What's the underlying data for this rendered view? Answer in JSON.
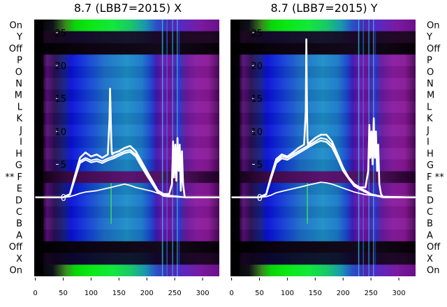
{
  "figure": {
    "row_labels": [
      "On",
      "Y",
      "Off",
      "P",
      "O",
      "N",
      "M",
      "L",
      "K",
      "J",
      "I",
      "H",
      "G",
      "F",
      "E",
      "D",
      "C",
      "B",
      "A",
      "Off",
      "X",
      "On"
    ],
    "marked_row": "F",
    "marked_row_marker": "**"
  },
  "chart_data": [
    {
      "type": "line",
      "title": "8.7 (LBB7=2015) X",
      "xlabel": "",
      "ylabel": "",
      "xlim": [
        -2,
        330
      ],
      "ylim": [
        -12,
        27
      ],
      "x_ticks": [
        0,
        50,
        100,
        150,
        200,
        250,
        300
      ],
      "y_ticks": [
        0,
        5,
        10,
        15,
        20,
        25
      ],
      "grid": false,
      "legend": "none",
      "background": "spectrogram heatmap: black edges, purple bands near x 5-15 and 225-300, blue/cyan interior, bright green top and bottom bands",
      "line_color": "#ffffff",
      "series": [
        {
          "x": [
            0,
            50,
            62,
            70,
            80,
            90,
            100,
            110,
            120,
            130,
            133,
            134,
            135,
            136,
            137,
            138,
            140,
            150,
            160,
            170,
            180,
            190,
            200,
            210,
            220,
            230,
            240,
            245,
            247,
            249,
            251,
            253,
            255,
            257,
            259,
            261,
            263,
            265,
            268,
            272,
            290,
            330
          ],
          "y": [
            0,
            0,
            0.5,
            3,
            6,
            6.8,
            6.2,
            6.5,
            6,
            6.5,
            12,
            16.5,
            13,
            9,
            7,
            6.5,
            6.7,
            7,
            7.5,
            7.8,
            7,
            5.5,
            4,
            2.5,
            1,
            0.5,
            0.5,
            2,
            8.5,
            3,
            8,
            2.5,
            9,
            4,
            8,
            1,
            7,
            2,
            0,
            0,
            0,
            0
          ]
        },
        {
          "x": [
            0,
            50,
            62,
            70,
            80,
            90,
            100,
            110,
            120,
            130,
            140,
            150,
            160,
            170,
            180,
            190,
            200,
            210,
            220,
            230,
            240,
            250,
            270,
            330
          ],
          "y": [
            0,
            0,
            0.4,
            2.8,
            5.5,
            6,
            5.6,
            5.8,
            5.5,
            5.9,
            6.2,
            6.6,
            7,
            7.2,
            6.5,
            5,
            3.6,
            2.2,
            0.8,
            0.3,
            0.2,
            0.1,
            0,
            0
          ]
        },
        {
          "x": [
            0,
            50,
            62,
            70,
            80,
            90,
            100,
            110,
            120,
            130,
            140,
            150,
            160,
            170,
            180,
            190,
            200,
            210,
            220,
            230,
            240,
            250,
            270,
            330
          ],
          "y": [
            0,
            0,
            0.4,
            2.5,
            5.2,
            5.7,
            5.3,
            5.5,
            5.2,
            5.6,
            5.9,
            6.3,
            6.7,
            6.9,
            6.2,
            4.7,
            3.3,
            2,
            0.7,
            0.2,
            0.1,
            0.1,
            0,
            0
          ]
        },
        {
          "x": [
            0,
            50,
            62,
            70,
            80,
            90,
            100,
            110,
            120,
            130,
            140,
            150,
            160,
            170,
            180,
            190,
            200,
            210,
            220,
            230,
            240,
            250,
            260,
            270,
            330
          ],
          "y": [
            0,
            0,
            0.1,
            0.3,
            0.6,
            0.8,
            0.9,
            1,
            1.2,
            1.4,
            1.6,
            1.8,
            2,
            1.8,
            1.5,
            1.3,
            1.1,
            0.9,
            0.6,
            0.4,
            0.3,
            0.2,
            0.1,
            0,
            0
          ]
        }
      ]
    },
    {
      "type": "line",
      "title": "8.7 (LBB7=2015) Y",
      "xlabel": "",
      "ylabel": "",
      "xlim": [
        -2,
        330
      ],
      "ylim": [
        -12,
        27
      ],
      "x_ticks": [
        0,
        50,
        100,
        150,
        200,
        250,
        300
      ],
      "y_ticks": [
        0,
        5,
        10,
        15,
        20,
        25
      ],
      "grid": false,
      "legend": "none",
      "background": "spectrogram heatmap: black edges, purple bands near x 5-15 and 225-300, blue/cyan interior, bright green top and bottom bands",
      "line_color": "#ffffff",
      "series": [
        {
          "x": [
            0,
            50,
            62,
            70,
            80,
            90,
            100,
            110,
            120,
            130,
            133,
            134,
            135,
            136,
            137,
            138,
            140,
            150,
            160,
            170,
            180,
            190,
            200,
            210,
            220,
            230,
            240,
            245,
            247,
            249,
            251,
            253,
            255,
            257,
            259,
            261,
            263,
            265,
            268,
            272,
            290,
            330
          ],
          "y": [
            0,
            0,
            0.5,
            3,
            5.8,
            6.5,
            6.2,
            6.8,
            7.5,
            8,
            13,
            24,
            15,
            9,
            8,
            7.8,
            8.3,
            9,
            9.5,
            9.5,
            8.5,
            6.5,
            4.5,
            3,
            2,
            1.5,
            1.5,
            4,
            11,
            6,
            10,
            5,
            12,
            6,
            10,
            4,
            8,
            2,
            0.5,
            0,
            0,
            0
          ]
        },
        {
          "x": [
            0,
            50,
            62,
            70,
            80,
            90,
            100,
            110,
            120,
            130,
            140,
            150,
            160,
            170,
            180,
            190,
            200,
            210,
            220,
            230,
            240,
            250,
            270,
            330
          ],
          "y": [
            0,
            0,
            0.4,
            2.8,
            5.5,
            6.2,
            6,
            6.5,
            7,
            7.5,
            8,
            8.5,
            9,
            8.8,
            8,
            6.2,
            4.3,
            3,
            1.9,
            1.4,
            1,
            0.5,
            0.1,
            0
          ]
        },
        {
          "x": [
            0,
            50,
            62,
            70,
            80,
            90,
            100,
            110,
            120,
            130,
            140,
            150,
            160,
            170,
            180,
            190,
            200,
            210,
            220,
            230,
            240,
            250,
            270,
            330
          ],
          "y": [
            0,
            0,
            0.4,
            2.6,
            5.2,
            5.9,
            5.7,
            6.2,
            6.7,
            7.2,
            7.7,
            8.2,
            8.6,
            8.4,
            7.6,
            5.9,
            4,
            2.8,
            1.7,
            1.2,
            0.8,
            0.4,
            0.1,
            0
          ]
        },
        {
          "x": [
            0,
            50,
            62,
            70,
            80,
            90,
            100,
            110,
            120,
            130,
            140,
            150,
            160,
            170,
            180,
            190,
            200,
            210,
            220,
            230,
            240,
            250,
            260,
            270,
            330
          ],
          "y": [
            0,
            0,
            0.1,
            0.3,
            0.7,
            0.9,
            1.1,
            1.3,
            1.5,
            1.7,
            1.9,
            2.1,
            2.3,
            2.2,
            2,
            1.7,
            1.4,
            1.1,
            0.8,
            0.6,
            0.4,
            0.3,
            0.2,
            0,
            0
          ]
        }
      ]
    }
  ]
}
